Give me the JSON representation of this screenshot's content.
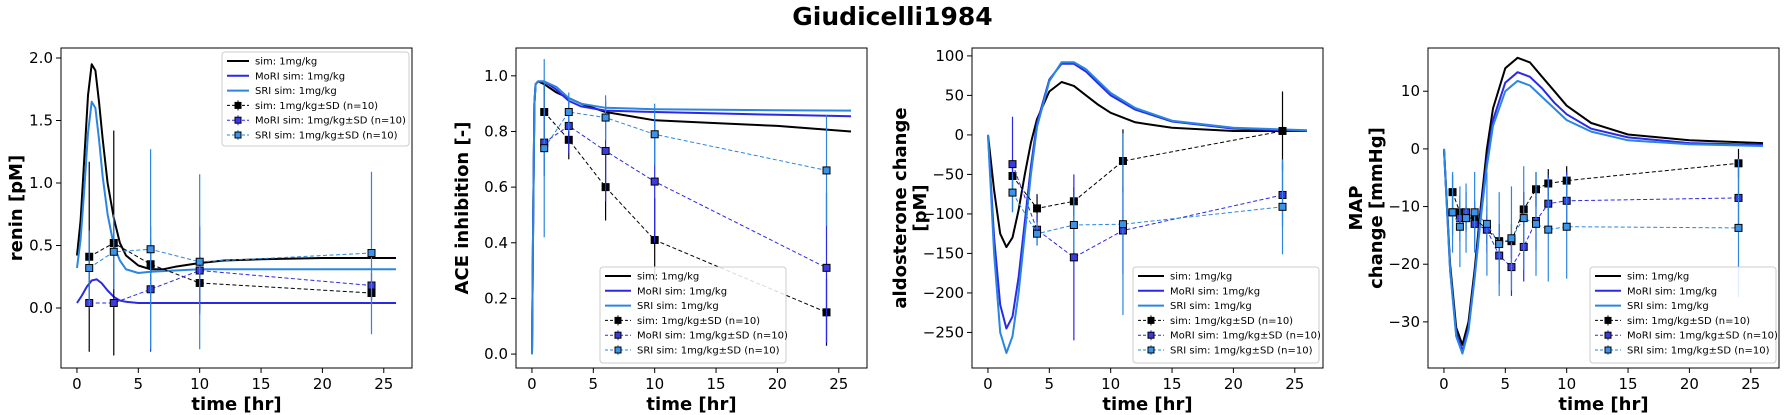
{
  "figure": {
    "title": "Giudicelli1984"
  },
  "colors": {
    "sim": "#000000",
    "mori": "#2a2ae6",
    "sri": "#2a86e0",
    "mori_marker": "#3b3be0",
    "sri_marker": "#3b94e8"
  },
  "legend_labels": [
    "sim: 1mg/kg",
    "MoRI sim: 1mg/kg",
    "SRI sim: 1mg/kg",
    "sim: 1mg/kg±SD (n=10)",
    "MoRI sim: 1mg/kg±SD (n=10)",
    "SRI sim: 1mg/kg±SD (n=10)"
  ],
  "chart_data": [
    {
      "type": "line",
      "xlabel": "time [hr]",
      "ylabel": [
        "renin [pM]"
      ],
      "xlim": [
        -1.3,
        27.3
      ],
      "ylim": [
        -0.48,
        2.08
      ],
      "xticks": [
        0,
        5,
        10,
        15,
        20,
        25
      ],
      "yticks": [
        0.0,
        0.5,
        1.0,
        1.5,
        2.0
      ],
      "ytick_labels": [
        "0.0",
        "0.5",
        "1.0",
        "1.5",
        "2.0"
      ],
      "legend_position": "upper-right",
      "series": [
        {
          "name": "sim: 1mg/kg",
          "kind": "sim",
          "style": "sim",
          "x": [
            0,
            0.3,
            0.6,
            0.9,
            1.2,
            1.5,
            1.8,
            2.1,
            2.5,
            3,
            3.5,
            4,
            5,
            6,
            7,
            8,
            10,
            12,
            15,
            20,
            26
          ],
          "y": [
            0.42,
            0.7,
            1.2,
            1.7,
            1.95,
            1.9,
            1.65,
            1.35,
            1.0,
            0.72,
            0.52,
            0.42,
            0.34,
            0.31,
            0.31,
            0.33,
            0.36,
            0.38,
            0.39,
            0.4,
            0.4
          ]
        },
        {
          "name": "MoRI sim: 1mg/kg",
          "kind": "sim",
          "style": "mori",
          "x": [
            0,
            0.4,
            0.8,
            1.2,
            1.6,
            2,
            2.5,
            3,
            3.5,
            4,
            5,
            6,
            8,
            12,
            20,
            26
          ],
          "y": [
            0.04,
            0.1,
            0.17,
            0.22,
            0.23,
            0.2,
            0.14,
            0.09,
            0.06,
            0.05,
            0.04,
            0.04,
            0.04,
            0.04,
            0.04,
            0.04
          ]
        },
        {
          "name": "SRI sim: 1mg/kg",
          "kind": "sim",
          "style": "sri",
          "x": [
            0,
            0.3,
            0.6,
            0.9,
            1.2,
            1.5,
            1.8,
            2.1,
            2.5,
            3,
            3.5,
            4,
            5,
            6,
            8,
            10,
            15,
            20,
            26
          ],
          "y": [
            0.32,
            0.55,
            0.95,
            1.4,
            1.65,
            1.6,
            1.35,
            1.05,
            0.75,
            0.5,
            0.38,
            0.31,
            0.28,
            0.29,
            0.3,
            0.31,
            0.31,
            0.31,
            0.31
          ]
        },
        {
          "name": "sim: 1mg/kg±SD (n=10)",
          "kind": "data",
          "style": "sim",
          "x": [
            1,
            3,
            6,
            10,
            24
          ],
          "y": [
            0.41,
            0.52,
            0.35,
            0.2,
            0.12
          ],
          "sd": [
            0.76,
            0.9,
            0.2,
            0.22,
            0.06
          ]
        },
        {
          "name": "MoRI sim: 1mg/kg±SD (n=10)",
          "kind": "data",
          "style": "mori",
          "x": [
            1,
            3,
            6,
            10,
            24
          ],
          "y": [
            0.04,
            0.04,
            0.15,
            0.3,
            0.18
          ],
          "sd": [
            0.05,
            0.04,
            0.5,
            0.35,
            0.1
          ]
        },
        {
          "name": "SRI sim: 1mg/kg±SD (n=10)",
          "kind": "data",
          "style": "sri",
          "x": [
            1,
            3,
            6,
            10,
            24
          ],
          "y": [
            0.32,
            0.45,
            0.47,
            0.37,
            0.44
          ],
          "sd": [
            0.3,
            0.3,
            0.8,
            0.7,
            0.65
          ]
        }
      ]
    },
    {
      "type": "line",
      "xlabel": "time [hr]",
      "ylabel": [
        "ACE inhibition [-]"
      ],
      "xlim": [
        -1.3,
        27.3
      ],
      "ylim": [
        -0.05,
        1.1
      ],
      "xticks": [
        0,
        5,
        10,
        15,
        20,
        25
      ],
      "yticks": [
        0.0,
        0.2,
        0.4,
        0.6,
        0.8,
        1.0
      ],
      "ytick_labels": [
        "0.0",
        "0.2",
        "0.4",
        "0.6",
        "0.8",
        "1.0"
      ],
      "legend_position": "lower-right",
      "series": [
        {
          "name": "sim: 1mg/kg",
          "kind": "sim",
          "style": "sim",
          "x": [
            0,
            0.1,
            0.2,
            0.3,
            0.5,
            1,
            2,
            4,
            6,
            10,
            15,
            20,
            26
          ],
          "y": [
            0.0,
            0.5,
            0.9,
            0.97,
            0.98,
            0.97,
            0.94,
            0.9,
            0.87,
            0.84,
            0.83,
            0.82,
            0.8
          ]
        },
        {
          "name": "MoRI sim: 1mg/kg",
          "kind": "sim",
          "style": "mori",
          "x": [
            0,
            0.1,
            0.2,
            0.3,
            0.5,
            1,
            2,
            3,
            4,
            6,
            10,
            15,
            20,
            26
          ],
          "y": [
            0.0,
            0.5,
            0.9,
            0.97,
            0.98,
            0.98,
            0.95,
            0.91,
            0.89,
            0.875,
            0.87,
            0.865,
            0.86,
            0.855
          ]
        },
        {
          "name": "SRI sim: 1mg/kg",
          "kind": "sim",
          "style": "sri",
          "x": [
            0,
            0.1,
            0.2,
            0.3,
            0.5,
            1,
            2,
            3,
            4,
            6,
            10,
            15,
            20,
            26
          ],
          "y": [
            0.0,
            0.5,
            0.9,
            0.97,
            0.98,
            0.98,
            0.96,
            0.92,
            0.9,
            0.885,
            0.88,
            0.878,
            0.876,
            0.875
          ]
        },
        {
          "name": "sim: 1mg/kg±SD (n=10)",
          "kind": "data",
          "style": "sim",
          "x": [
            1,
            3,
            6,
            10,
            24
          ],
          "y": [
            0.87,
            0.77,
            0.6,
            0.41,
            0.15
          ],
          "sd": [
            0.1,
            0.07,
            0.12,
            0.15,
            0.12
          ]
        },
        {
          "name": "MoRI sim: 1mg/kg±SD (n=10)",
          "kind": "data",
          "style": "mori",
          "x": [
            1,
            3,
            6,
            10,
            24
          ],
          "y": [
            0.76,
            0.82,
            0.73,
            0.62,
            0.31
          ],
          "sd": [
            0.12,
            0.1,
            0.18,
            0.22,
            0.27
          ]
        },
        {
          "name": "SRI sim: 1mg/kg±SD (n=10)",
          "kind": "data",
          "style": "sri",
          "x": [
            1,
            3,
            6,
            10,
            24
          ],
          "y": [
            0.74,
            0.87,
            0.85,
            0.79,
            0.66
          ],
          "sd": [
            0.32,
            0.07,
            0.08,
            0.11,
            0.2
          ]
        }
      ]
    },
    {
      "type": "line",
      "xlabel": "time [hr]",
      "ylabel": [
        "aldosterone change",
        "[pM]"
      ],
      "xlim": [
        -1.3,
        27.3
      ],
      "ylim": [
        -295,
        110
      ],
      "xticks": [
        0,
        5,
        10,
        15,
        20,
        25
      ],
      "yticks": [
        -250,
        -200,
        -150,
        -100,
        -50,
        0,
        50,
        100
      ],
      "ytick_labels": [
        "−250",
        "−200",
        "−150",
        "−100",
        "−50",
        "0",
        "50",
        "100"
      ],
      "legend_position": "lower-right",
      "series": [
        {
          "name": "sim: 1mg/kg",
          "kind": "sim",
          "style": "sim",
          "x": [
            0,
            0.5,
            1,
            1.5,
            2,
            2.5,
            3,
            3.5,
            4,
            5,
            6,
            7,
            8,
            9,
            10,
            12,
            15,
            20,
            26
          ],
          "y": [
            0,
            -70,
            -125,
            -142,
            -130,
            -95,
            -50,
            -10,
            20,
            55,
            67,
            62,
            50,
            38,
            28,
            16,
            9,
            5,
            5
          ]
        },
        {
          "name": "MoRI sim: 1mg/kg",
          "kind": "sim",
          "style": "mori",
          "x": [
            0,
            0.5,
            1,
            1.5,
            2,
            2.5,
            3,
            3.5,
            4,
            5,
            6,
            7,
            8,
            9,
            10,
            12,
            15,
            20,
            26
          ],
          "y": [
            0,
            -130,
            -215,
            -245,
            -230,
            -180,
            -110,
            -40,
            15,
            70,
            90,
            90,
            80,
            65,
            50,
            32,
            17,
            8,
            5
          ]
        },
        {
          "name": "SRI sim: 1mg/kg",
          "kind": "sim",
          "style": "sri",
          "x": [
            0,
            0.5,
            1,
            1.5,
            2,
            2.5,
            3,
            3.5,
            4,
            5,
            6,
            7,
            8,
            9,
            10,
            12,
            15,
            20,
            26
          ],
          "y": [
            0,
            -150,
            -250,
            -276,
            -255,
            -200,
            -125,
            -50,
            10,
            68,
            92,
            92,
            83,
            68,
            53,
            34,
            18,
            9,
            6
          ]
        },
        {
          "name": "sim: 1mg/kg±SD (n=10)",
          "kind": "data",
          "style": "sim",
          "x": [
            2,
            4,
            7,
            11,
            24
          ],
          "y": [
            -52,
            -93,
            -84,
            -33,
            5
          ],
          "sd": [
            15,
            18,
            18,
            40,
            50
          ]
        },
        {
          "name": "MoRI sim: 1mg/kg±SD (n=10)",
          "kind": "data",
          "style": "mori",
          "x": [
            2,
            4,
            7,
            11,
            24
          ],
          "y": [
            -37,
            -120,
            -155,
            -121,
            -76
          ],
          "sd": [
            60,
            20,
            105,
            55,
            40
          ]
        },
        {
          "name": "SRI sim: 1mg/kg±SD (n=10)",
          "kind": "data",
          "style": "sri",
          "x": [
            2,
            4,
            7,
            11,
            24
          ],
          "y": [
            -73,
            -125,
            -114,
            -113,
            -91
          ],
          "sd": [
            25,
            15,
            35,
            115,
            60
          ]
        }
      ]
    },
    {
      "type": "line",
      "xlabel": "time [hr]",
      "ylabel": [
        "MAP",
        "change [mmHg]"
      ],
      "xlim": [
        -1.3,
        27.3
      ],
      "ylim": [
        -38,
        17.5
      ],
      "xticks": [
        0,
        5,
        10,
        15,
        20,
        25
      ],
      "yticks": [
        -30,
        -20,
        -10,
        0,
        10
      ],
      "ytick_labels": [
        "−30",
        "−20",
        "−10",
        "0",
        "10"
      ],
      "legend_position": "lower-right",
      "series": [
        {
          "name": "sim: 1mg/kg",
          "kind": "sim",
          "style": "sim",
          "x": [
            0,
            0.5,
            1,
            1.5,
            2,
            2.5,
            3,
            3.5,
            4,
            5,
            6,
            7,
            8,
            9,
            10,
            12,
            15,
            20,
            26
          ],
          "y": [
            0,
            -20,
            -31,
            -34,
            -30,
            -21,
            -10,
            0,
            7,
            14,
            15.8,
            15,
            12.5,
            10,
            7.5,
            4.5,
            2.5,
            1.5,
            1
          ]
        },
        {
          "name": "MoRI sim: 1mg/kg",
          "kind": "sim",
          "style": "mori",
          "x": [
            0,
            0.5,
            1,
            1.5,
            2,
            2.5,
            3,
            3.5,
            4,
            5,
            6,
            7,
            8,
            9,
            10,
            12,
            15,
            20,
            26
          ],
          "y": [
            0,
            -21,
            -32,
            -35,
            -31,
            -22,
            -11,
            -2,
            5,
            11.5,
            13.3,
            12.5,
            10.5,
            8,
            6,
            3.5,
            2,
            1,
            0.7
          ]
        },
        {
          "name": "SRI sim: 1mg/kg",
          "kind": "sim",
          "style": "sri",
          "x": [
            0,
            0.5,
            1,
            1.5,
            2,
            2.5,
            3,
            3.5,
            4,
            5,
            6,
            7,
            8,
            9,
            10,
            12,
            15,
            20,
            26
          ],
          "y": [
            0,
            -21,
            -32.5,
            -35.5,
            -31.5,
            -22.5,
            -12,
            -3,
            4,
            10,
            11.8,
            11,
            9,
            7,
            5,
            3,
            1.5,
            0.8,
            0.5
          ]
        },
        {
          "name": "sim: 1mg/kg±SD (n=10)",
          "kind": "data",
          "style": "sim",
          "x": [
            0.7,
            1.3,
            1.8,
            2.5,
            3.5,
            4.5,
            5.5,
            6.5,
            7.5,
            8.5,
            10,
            24
          ],
          "y": [
            -7.5,
            -11,
            -12,
            -12,
            -14,
            -16,
            -16,
            -10.5,
            -7,
            -6,
            -5.5,
            -2.5
          ],
          "sd": [
            3,
            2,
            2,
            2,
            2.5,
            3,
            3,
            3,
            3,
            2.5,
            2.5,
            2.5
          ]
        },
        {
          "name": "MoRI sim: 1mg/kg±SD (n=10)",
          "kind": "data",
          "style": "mori",
          "x": [
            0.7,
            1.3,
            1.8,
            2.5,
            3.5,
            4.5,
            5.5,
            6.5,
            7.5,
            8.5,
            10,
            24
          ],
          "y": [
            -11,
            -12,
            -11,
            -13,
            -14,
            -18.5,
            -20.5,
            -17,
            -12.5,
            -9.5,
            -9,
            -8.5
          ],
          "sd": [
            4,
            4,
            3.5,
            4,
            4,
            5,
            5,
            6,
            5,
            5,
            5,
            5
          ]
        },
        {
          "name": "SRI sim: 1mg/kg±SD (n=10)",
          "kind": "data",
          "style": "sri",
          "x": [
            0.7,
            1.3,
            1.8,
            2.5,
            3.5,
            4.5,
            5.5,
            6.5,
            7.5,
            8.5,
            10,
            24
          ],
          "y": [
            -11,
            -13.5,
            -12,
            -11,
            -13,
            -16.5,
            -15.5,
            -12,
            -13,
            -14,
            -13.5,
            -13.7
          ],
          "sd": [
            7,
            7,
            6,
            7,
            9,
            9,
            9,
            9,
            9,
            9,
            9,
            12
          ]
        }
      ]
    }
  ]
}
